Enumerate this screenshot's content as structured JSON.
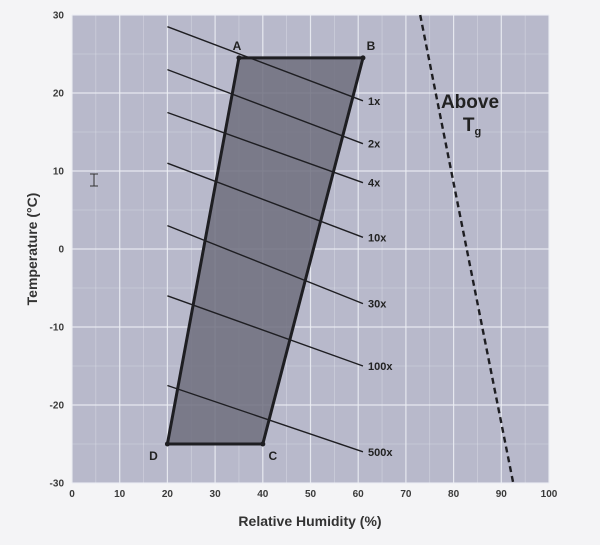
{
  "chart_data": {
    "type": "line",
    "xlabel": "Relative Humidity (%)",
    "ylabel": "Temperature (°C)",
    "xlim": [
      0,
      100
    ],
    "ylim": [
      -30,
      30
    ],
    "x_ticks": [
      0,
      10,
      20,
      30,
      40,
      50,
      60,
      70,
      80,
      90,
      100
    ],
    "y_ticks": [
      -30,
      -20,
      -10,
      0,
      10,
      20,
      30
    ],
    "grid": true,
    "region": {
      "points": [
        {
          "name": "A",
          "x": 35,
          "y": 24.5
        },
        {
          "name": "B",
          "x": 61,
          "y": 24.5
        },
        {
          "name": "C",
          "x": 40,
          "y": -25
        },
        {
          "name": "D",
          "x": 20,
          "y": -25
        }
      ]
    },
    "iso_lines": [
      {
        "label": "1x",
        "x1": 20,
        "y1": 28.5,
        "x2": 61,
        "y2": 19
      },
      {
        "label": "2x",
        "x1": 20,
        "y1": 23,
        "x2": 61,
        "y2": 13.5
      },
      {
        "label": "4x",
        "x1": 20,
        "y1": 17.5,
        "x2": 61,
        "y2": 8.5
      },
      {
        "label": "10x",
        "x1": 20,
        "y1": 11,
        "x2": 61,
        "y2": 1.5
      },
      {
        "label": "30x",
        "x1": 20,
        "y1": 3,
        "x2": 61,
        "y2": -7
      },
      {
        "label": "100x",
        "x1": 20,
        "y1": -6,
        "x2": 61,
        "y2": -15
      },
      {
        "label": "500x",
        "x1": 20,
        "y1": -17.5,
        "x2": 61,
        "y2": -26
      }
    ],
    "glass_transition_line": {
      "x1": 73,
      "y1": 30,
      "x2": 92.5,
      "y2": -30
    },
    "annotation": {
      "main": "Above",
      "tg_letter": "T",
      "tg_subscript": "g"
    },
    "colors": {
      "plot_bg": "#b8b9cb",
      "region_fill": "#6f6f7e",
      "grid": "#eceef4",
      "line": "#1e1e22"
    }
  }
}
